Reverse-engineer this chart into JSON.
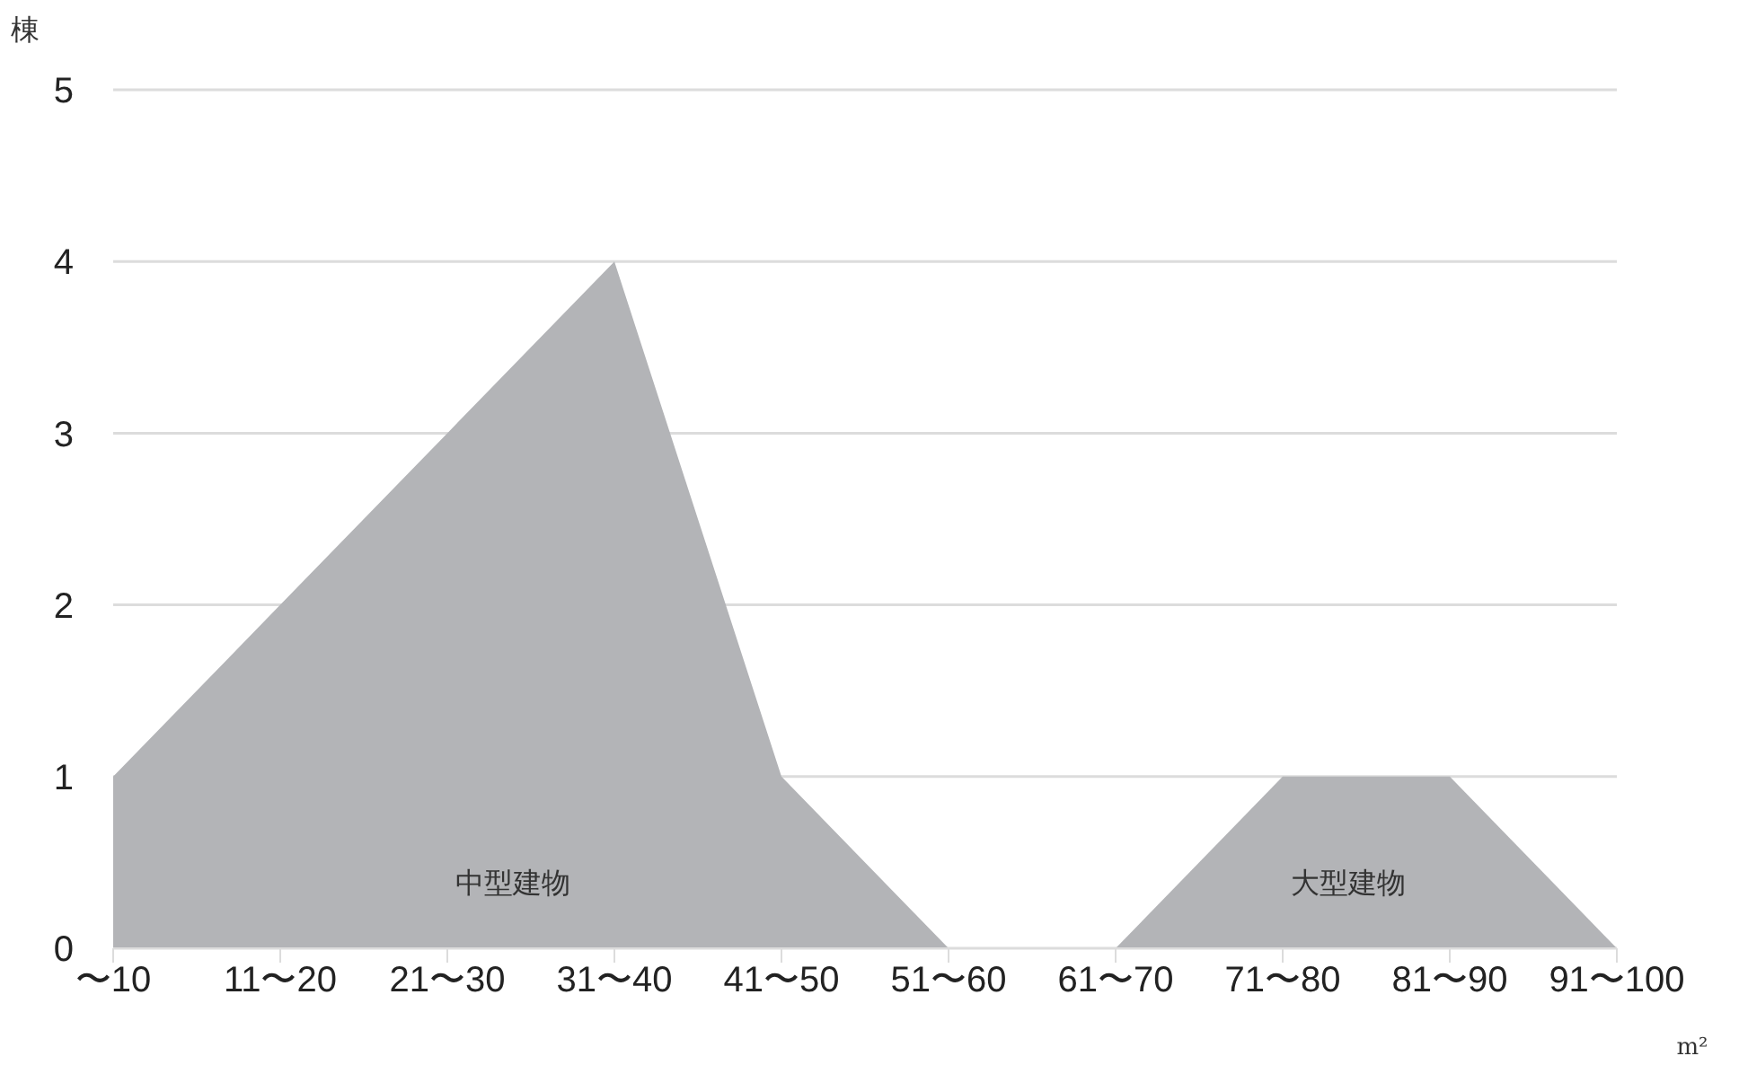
{
  "chart_data": {
    "type": "area",
    "ylabel": "棟",
    "xlabel": "m²",
    "categories": [
      "〜10",
      "11〜20",
      "21〜30",
      "31〜40",
      "41〜50",
      "51〜60",
      "61〜70",
      "71〜80",
      "81〜90",
      "91〜100"
    ],
    "series": [
      {
        "name": "中型建物",
        "color": "#b3b4b7",
        "values": [
          1,
          2,
          3,
          4,
          1,
          0,
          null,
          null,
          null,
          null
        ]
      },
      {
        "name": "大型建物",
        "color": "#b3b4b7",
        "values": [
          null,
          null,
          null,
          null,
          null,
          null,
          0,
          1,
          1,
          0
        ]
      }
    ],
    "ylim": [
      0,
      5
    ],
    "yticks": [
      0,
      1,
      2,
      3,
      4,
      5
    ],
    "grid": "y"
  }
}
